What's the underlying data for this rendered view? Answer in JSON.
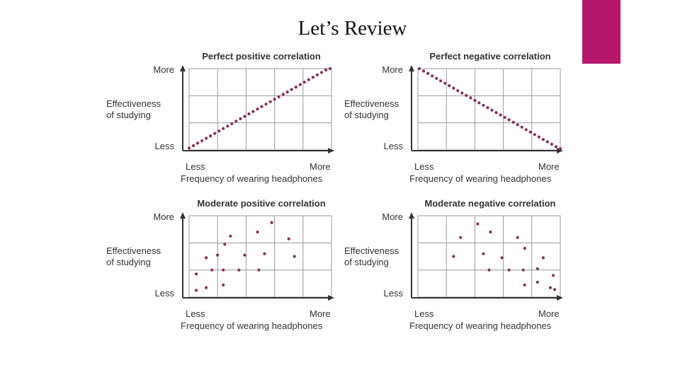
{
  "slide": {
    "title": "Let’s Review",
    "accent_color": "#b5176b"
  },
  "point_color": "#8b2a5e",
  "chart_data": [
    {
      "type": "scatter",
      "title": "Perfect positive correlation",
      "xlabel": "Frequency of wearing headphones",
      "ylabel": [
        "Effectiveness",
        "of studying"
      ],
      "xticks": [
        "Less",
        "More"
      ],
      "yticks": [
        "Less",
        "More"
      ],
      "xlim": [
        0,
        5
      ],
      "ylim": [
        0,
        3
      ],
      "grid": true,
      "points": [
        [
          0.0,
          0.07
        ],
        [
          0.15,
          0.16
        ],
        [
          0.3,
          0.25
        ],
        [
          0.45,
          0.34
        ],
        [
          0.6,
          0.43
        ],
        [
          0.75,
          0.52
        ],
        [
          0.9,
          0.61
        ],
        [
          1.05,
          0.7
        ],
        [
          1.2,
          0.79
        ],
        [
          1.35,
          0.88
        ],
        [
          1.5,
          0.97
        ],
        [
          1.65,
          1.06
        ],
        [
          1.8,
          1.15
        ],
        [
          1.95,
          1.24
        ],
        [
          2.1,
          1.33
        ],
        [
          2.25,
          1.42
        ],
        [
          2.4,
          1.51
        ],
        [
          2.55,
          1.6
        ],
        [
          2.7,
          1.69
        ],
        [
          2.85,
          1.78
        ],
        [
          3.0,
          1.87
        ],
        [
          3.15,
          1.96
        ],
        [
          3.3,
          2.05
        ],
        [
          3.45,
          2.14
        ],
        [
          3.6,
          2.23
        ],
        [
          3.75,
          2.32
        ],
        [
          3.9,
          2.41
        ],
        [
          4.05,
          2.5
        ],
        [
          4.2,
          2.59
        ],
        [
          4.35,
          2.68
        ],
        [
          4.5,
          2.77
        ],
        [
          4.65,
          2.86
        ],
        [
          4.8,
          2.95
        ],
        [
          4.95,
          3.0
        ]
      ]
    },
    {
      "type": "scatter",
      "title": "Perfect negative correlation",
      "xlabel": "Frequency of wearing headphones",
      "ylabel": [
        "Effectiveness",
        "of studying"
      ],
      "xticks": [
        "Less",
        "More"
      ],
      "yticks": [
        "Less",
        "More"
      ],
      "xlim": [
        0,
        5
      ],
      "ylim": [
        0,
        3
      ],
      "grid": true,
      "points": [
        [
          0.05,
          3.0
        ],
        [
          0.2,
          2.91
        ],
        [
          0.35,
          2.82
        ],
        [
          0.5,
          2.73
        ],
        [
          0.65,
          2.64
        ],
        [
          0.8,
          2.55
        ],
        [
          0.95,
          2.46
        ],
        [
          1.1,
          2.37
        ],
        [
          1.25,
          2.28
        ],
        [
          1.4,
          2.19
        ],
        [
          1.55,
          2.1
        ],
        [
          1.7,
          2.01
        ],
        [
          1.85,
          1.92
        ],
        [
          2.0,
          1.83
        ],
        [
          2.15,
          1.74
        ],
        [
          2.3,
          1.65
        ],
        [
          2.45,
          1.56
        ],
        [
          2.6,
          1.47
        ],
        [
          2.75,
          1.38
        ],
        [
          2.9,
          1.29
        ],
        [
          3.05,
          1.2
        ],
        [
          3.2,
          1.11
        ],
        [
          3.35,
          1.02
        ],
        [
          3.5,
          0.93
        ],
        [
          3.65,
          0.84
        ],
        [
          3.8,
          0.75
        ],
        [
          3.95,
          0.66
        ],
        [
          4.1,
          0.57
        ],
        [
          4.25,
          0.48
        ],
        [
          4.4,
          0.39
        ],
        [
          4.55,
          0.3
        ],
        [
          4.7,
          0.21
        ],
        [
          4.85,
          0.12
        ],
        [
          5.0,
          0.05
        ]
      ]
    },
    {
      "type": "scatter",
      "title": "Moderate positive correlation",
      "xlabel": "Frequency of wearing headphones",
      "ylabel": [
        "Effectiveness",
        "of studying"
      ],
      "xticks": [
        "Less",
        "More"
      ],
      "yticks": [
        "Less",
        "More"
      ],
      "xlim": [
        0,
        5
      ],
      "ylim": [
        0,
        3
      ],
      "grid": true,
      "points": [
        [
          0.25,
          0.25
        ],
        [
          0.25,
          0.85
        ],
        [
          0.6,
          0.35
        ],
        [
          0.6,
          1.45
        ],
        [
          0.8,
          1.0
        ],
        [
          1.0,
          1.55
        ],
        [
          1.2,
          0.45
        ],
        [
          1.2,
          1.0
        ],
        [
          1.25,
          1.95
        ],
        [
          1.45,
          2.25
        ],
        [
          1.75,
          1.0
        ],
        [
          1.95,
          1.55
        ],
        [
          2.4,
          2.4
        ],
        [
          2.45,
          1.0
        ],
        [
          2.65,
          1.6
        ],
        [
          2.9,
          2.75
        ],
        [
          3.5,
          2.15
        ],
        [
          3.7,
          1.5
        ]
      ]
    },
    {
      "type": "scatter",
      "title": "Moderate negative correlation",
      "xlabel": "Frequency of wearing headphones",
      "ylabel": [
        "Effectiveness",
        "of studying"
      ],
      "xticks": [
        "Less",
        "More"
      ],
      "yticks": [
        "Less",
        "More"
      ],
      "xlim": [
        0,
        5
      ],
      "ylim": [
        0,
        3
      ],
      "grid": true,
      "points": [
        [
          1.25,
          1.5
        ],
        [
          1.5,
          2.2
        ],
        [
          2.1,
          2.7
        ],
        [
          2.3,
          1.6
        ],
        [
          2.55,
          2.4
        ],
        [
          2.5,
          1.0
        ],
        [
          2.95,
          1.45
        ],
        [
          3.2,
          1.0
        ],
        [
          3.5,
          2.2
        ],
        [
          3.7,
          1.0
        ],
        [
          3.75,
          1.8
        ],
        [
          3.75,
          0.45
        ],
        [
          4.2,
          0.55
        ],
        [
          4.2,
          1.05
        ],
        [
          4.4,
          1.45
        ],
        [
          4.65,
          0.35
        ],
        [
          4.75,
          0.8
        ],
        [
          4.8,
          0.28
        ]
      ]
    }
  ]
}
